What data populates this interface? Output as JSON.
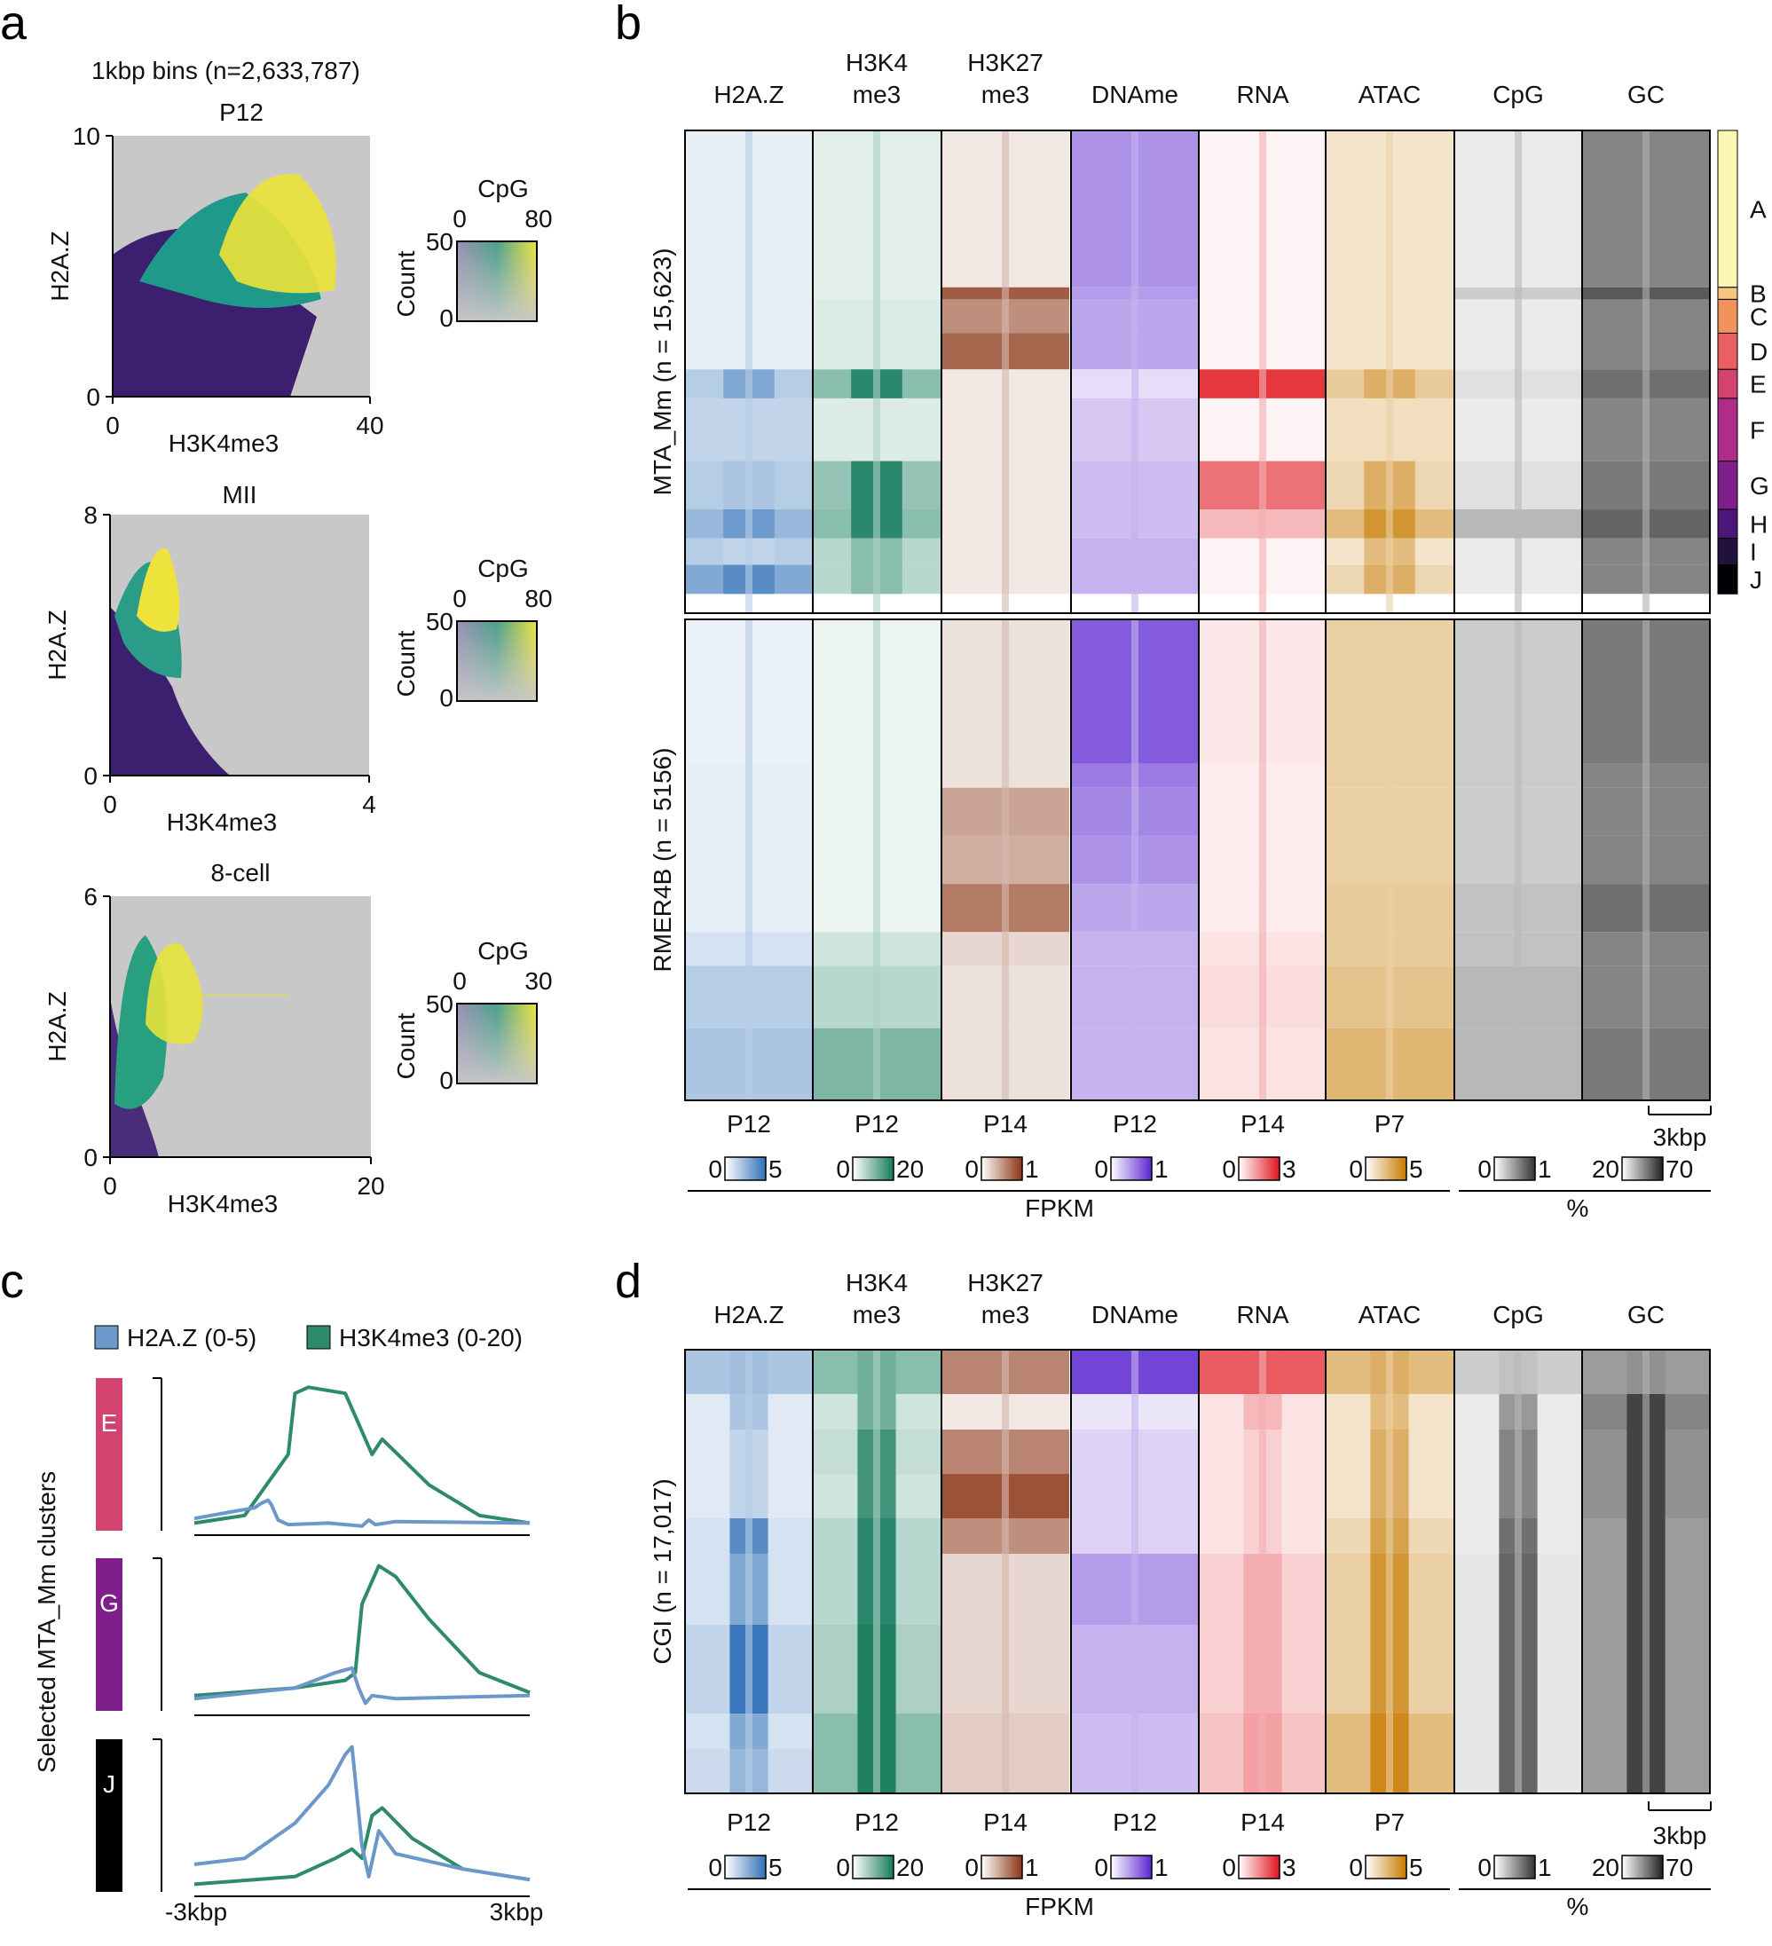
{
  "figure": {
    "panel_a": {
      "letter": "a",
      "bins_title": "1kbp bins (n=2,633,787)",
      "plots": [
        {
          "name": "P12",
          "ylabel": "H2A.Z",
          "xlabel": "H3K4me3",
          "x_min": "0",
          "x_max": "40",
          "y_min": "0",
          "y_max": "10",
          "legend": {
            "title": "CpG",
            "cpg_min": "0",
            "cpg_max": "80",
            "count_label": "Count",
            "count_max": "50",
            "count_min": "0"
          }
        },
        {
          "name": "MII",
          "ylabel": "H2A.Z",
          "xlabel": "H3K4me3",
          "x_min": "0",
          "x_max": "4",
          "y_min": "0",
          "y_max": "8",
          "legend": {
            "title": "CpG",
            "cpg_min": "0",
            "cpg_max": "80",
            "count_label": "Count",
            "count_max": "50",
            "count_min": "0"
          }
        },
        {
          "name": "8-cell",
          "ylabel": "H2A.Z",
          "xlabel": "H3K4me3",
          "x_min": "0",
          "x_max": "20",
          "y_min": "0",
          "y_max": "6",
          "legend": {
            "title": "CpG",
            "cpg_min": "0",
            "cpg_max": "30",
            "count_label": "Count",
            "count_max": "50",
            "count_min": "0"
          }
        }
      ]
    },
    "panel_b": {
      "letter": "b",
      "columns": [
        {
          "line1": "",
          "line2": "H2A.Z",
          "stage": "P12",
          "scale_min": "0",
          "scale_max": "5",
          "color": "#2f6fb7"
        },
        {
          "line1": "H3K4",
          "line2": "me3",
          "stage": "P12",
          "scale_min": "0",
          "scale_max": "20",
          "color": "#137a5a"
        },
        {
          "line1": "H3K27",
          "line2": "me3",
          "stage": "P14",
          "scale_min": "0",
          "scale_max": "1",
          "color": "#8a3414"
        },
        {
          "line1": "",
          "line2": "DNAme",
          "stage": "P12",
          "scale_min": "0",
          "scale_max": "1",
          "color": "#5a24d0"
        },
        {
          "line1": "",
          "line2": "RNA",
          "stage": "P14",
          "scale_min": "0",
          "scale_max": "3",
          "color": "#e0141c"
        },
        {
          "line1": "",
          "line2": "ATAC",
          "stage": "P7",
          "scale_min": "0",
          "scale_max": "5",
          "color": "#c77a00"
        },
        {
          "line1": "",
          "line2": "CpG",
          "stage": "",
          "scale_min": "0",
          "scale_max": "1",
          "color": "#333333"
        },
        {
          "line1": "",
          "line2": "GC",
          "stage": "",
          "scale_min": "20",
          "scale_max": "70",
          "color": "#222222"
        }
      ],
      "row_labels": [
        "MTA_Mm (n = 15,623)",
        "RMER4B (n = 5156)"
      ],
      "clusters": [
        "A",
        "B",
        "C",
        "D",
        "E",
        "F",
        "G",
        "H",
        "I",
        "J"
      ],
      "cluster_colors": [
        "#fcf6b5",
        "#f6c582",
        "#f1935d",
        "#e86062",
        "#d44370",
        "#b02c8a",
        "#7f1f8c",
        "#4c1678",
        "#21113d",
        "#000004"
      ],
      "cluster_fractions": [
        0.325,
        0.025,
        0.07,
        0.075,
        0.06,
        0.13,
        0.1,
        0.06,
        0.055,
        0.06
      ],
      "scalebar": "3kbp",
      "fpkm_label": "FPKM",
      "percent_label": "%"
    },
    "panel_c": {
      "letter": "c",
      "legend": [
        {
          "label": "H2A.Z (0-5)",
          "color": "#6b97c9"
        },
        {
          "label": "H3K4me3 (0-20)",
          "color": "#2e8a6a"
        }
      ],
      "ylabel": "Selected MTA_Mm clusters",
      "xtick_left": "-3kbp",
      "xtick_right": "3kbp",
      "clusters": [
        {
          "name": "E",
          "color": "#d44370"
        },
        {
          "name": "G",
          "color": "#7f1f8c"
        },
        {
          "name": "J",
          "color": "#000000"
        }
      ]
    },
    "panel_d": {
      "letter": "d",
      "row_label": "CGI (n = 17,017)",
      "scalebar": "3kbp",
      "fpkm_label": "FPKM",
      "percent_label": "%"
    }
  }
}
